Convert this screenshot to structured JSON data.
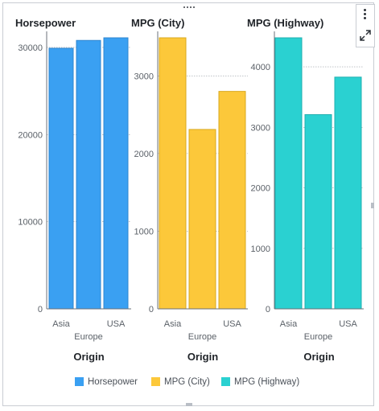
{
  "chart_data": [
    {
      "type": "bar",
      "title": "Horsepower",
      "color": "#3aa0f2",
      "stroke": "#2f86cf",
      "categories": [
        "Asia",
        "Europe",
        "USA"
      ],
      "values": [
        29900,
        30800,
        31100
      ],
      "ylim": [
        0,
        31100
      ],
      "yticks": [
        0,
        10000,
        20000,
        30000
      ],
      "ytick_labels": [
        "0",
        "10000",
        "20000",
        "30000"
      ],
      "xlabel": "Origin",
      "grid": true
    },
    {
      "type": "bar",
      "title": "MPG (City)",
      "color": "#fcc83a",
      "stroke": "#d9a91f",
      "categories": [
        "Asia",
        "Europe",
        "USA"
      ],
      "values": [
        3490,
        2310,
        2800
      ],
      "ylim": [
        0,
        3490
      ],
      "yticks": [
        0,
        1000,
        2000,
        3000
      ],
      "ytick_labels": [
        "0",
        "1000",
        "2000",
        "3000"
      ],
      "xlabel": "Origin",
      "grid": true
    },
    {
      "type": "bar",
      "title": "MPG (Highway)",
      "color": "#2ad1d1",
      "stroke": "#1fb0b0",
      "categories": [
        "Asia",
        "Europe",
        "USA"
      ],
      "values": [
        4480,
        3210,
        3830
      ],
      "ylim": [
        0,
        4480
      ],
      "yticks": [
        0,
        1000,
        2000,
        3000,
        4000
      ],
      "ytick_labels": [
        "0",
        "1000",
        "2000",
        "3000",
        "4000"
      ],
      "xlabel": "Origin",
      "grid": true
    }
  ],
  "legend": {
    "placement": "bottom",
    "items": [
      {
        "label": "Horsepower",
        "color": "#3aa0f2"
      },
      {
        "label": "MPG (City)",
        "color": "#fcc83a"
      },
      {
        "label": "MPG (Highway)",
        "color": "#2ad1d1"
      }
    ]
  },
  "icons": {
    "menu": "vertical-ellipsis-icon",
    "expand": "expand-diagonal-icon",
    "drag": "drag-handle-icon"
  }
}
